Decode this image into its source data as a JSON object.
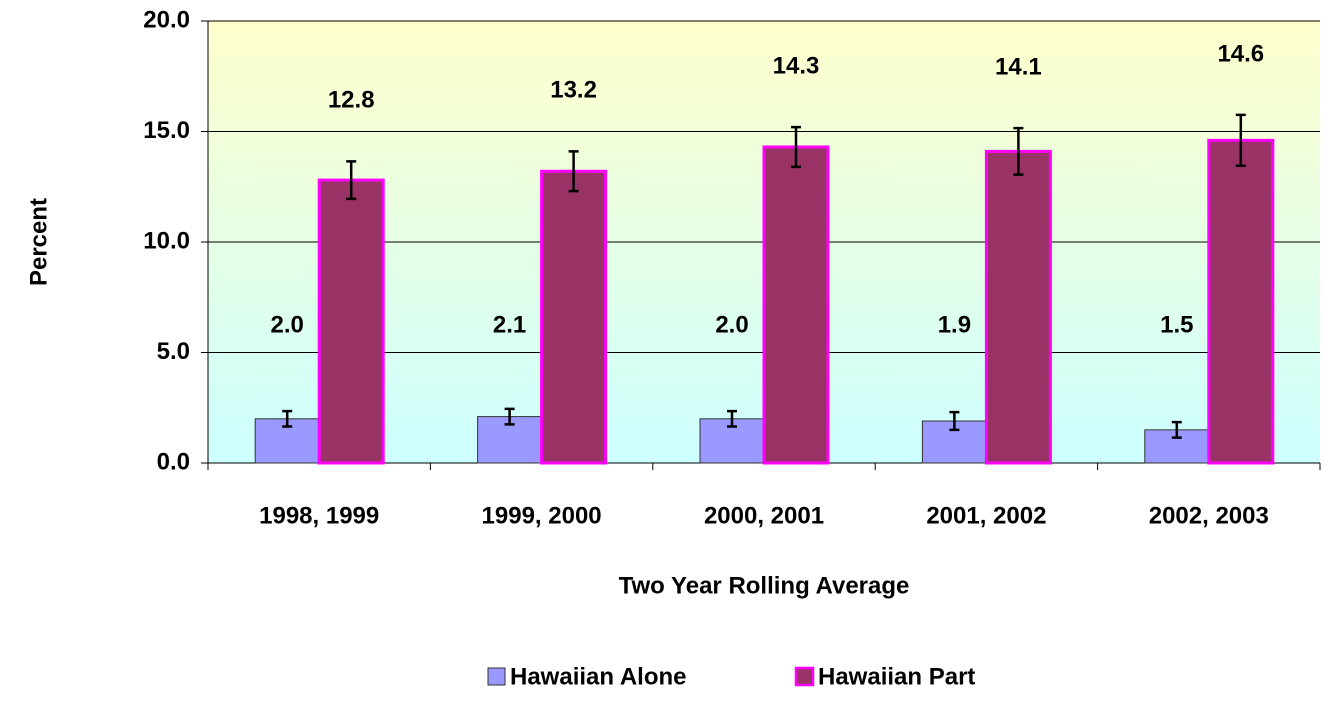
{
  "chart_data": {
    "type": "bar",
    "x_label": "Two Year Rolling Average",
    "y_label": "Percent",
    "categories": [
      "1998, 1999",
      "1999, 2000",
      "2000, 2001",
      "2001, 2002",
      "2002, 2003"
    ],
    "series": [
      {
        "name": "Hawaiian Alone",
        "color": "#9999ff",
        "border": "#333333",
        "values": [
          2.0,
          2.1,
          2.0,
          1.9,
          1.5
        ],
        "value_labels": [
          "2.0",
          "2.1",
          "2.0",
          "1.9",
          "1.5"
        ],
        "errors": [
          0.35,
          0.35,
          0.35,
          0.4,
          0.35
        ]
      },
      {
        "name": "Hawaiian Part",
        "color": "#993366",
        "border": "#ff00ff",
        "values": [
          12.8,
          13.2,
          14.3,
          14.1,
          14.6
        ],
        "value_labels": [
          "12.8",
          "13.2",
          "14.3",
          "14.1",
          "14.6"
        ],
        "errors": [
          0.85,
          0.9,
          0.9,
          1.05,
          1.15
        ]
      }
    ],
    "ylim": [
      0,
      20
    ],
    "yticks": [
      {
        "value": 0,
        "label": "0.0"
      },
      {
        "value": 5,
        "label": "5.0"
      },
      {
        "value": 10,
        "label": "10.0"
      },
      {
        "value": 15,
        "label": "15.0"
      },
      {
        "value": 20,
        "label": "20.0"
      }
    ],
    "grid": true,
    "legend": "bottom"
  }
}
